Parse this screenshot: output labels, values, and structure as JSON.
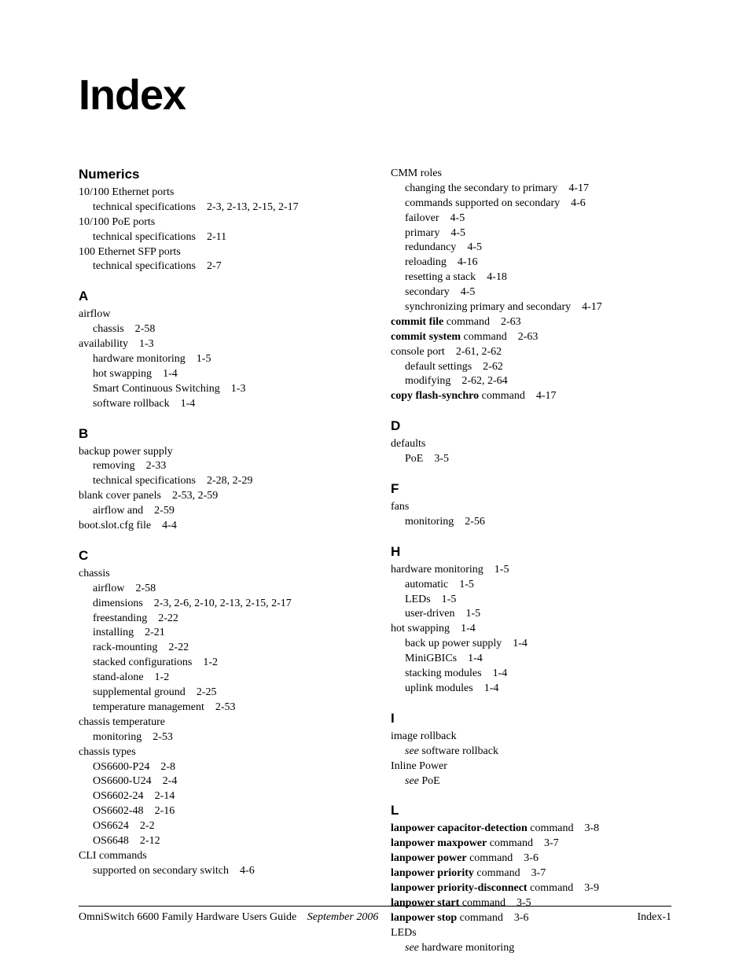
{
  "title": "Index",
  "footer": {
    "guide": "OmniSwitch 6600 Family Hardware Users Guide",
    "date": "September 2006",
    "page": "Index-1"
  },
  "left": {
    "numerics": {
      "head": "Numerics",
      "e1": "10/100 Ethernet ports",
      "e1a_label": "technical specifications",
      "e1a_pages": "2-3, 2-13, 2-15, 2-17",
      "e2": "10/100 PoE ports",
      "e2a_label": "technical specifications",
      "e2a_pages": "2-11",
      "e3": "100 Ethernet SFP ports",
      "e3a_label": "technical specifications",
      "e3a_pages": "2-7"
    },
    "A": {
      "head": "A",
      "e1": "airflow",
      "e1a_label": "chassis",
      "e1a_pages": "2-58",
      "e2_label": "availability",
      "e2_pages": "1-3",
      "e2a_label": "hardware monitoring",
      "e2a_pages": "1-5",
      "e2b_label": "hot swapping",
      "e2b_pages": "1-4",
      "e2c_label": "Smart Continuous Switching",
      "e2c_pages": "1-3",
      "e2d_label": "software rollback",
      "e2d_pages": "1-4"
    },
    "B": {
      "head": "B",
      "e1": "backup power supply",
      "e1a_label": "removing",
      "e1a_pages": "2-33",
      "e1b_label": "technical specifications",
      "e1b_pages": "2-28, 2-29",
      "e2_label": "blank cover panels",
      "e2_pages": "2-53, 2-59",
      "e2a_label": "airflow and",
      "e2a_pages": "2-59",
      "e3_label": "boot.slot.cfg file",
      "e3_pages": "4-4"
    },
    "C": {
      "head": "C",
      "e1": "chassis",
      "e1a_label": "airflow",
      "e1a_pages": "2-58",
      "e1b_label": "dimensions",
      "e1b_pages": "2-3, 2-6, 2-10, 2-13, 2-15, 2-17",
      "e1c_label": "freestanding",
      "e1c_pages": "2-22",
      "e1d_label": "installing",
      "e1d_pages": "2-21",
      "e1e_label": "rack-mounting",
      "e1e_pages": "2-22",
      "e1f_label": "stacked configurations",
      "e1f_pages": "1-2",
      "e1g_label": "stand-alone",
      "e1g_pages": "1-2",
      "e1h_label": "supplemental ground",
      "e1h_pages": "2-25",
      "e1i_label": "temperature management",
      "e1i_pages": "2-53",
      "e2": "chassis temperature",
      "e2a_label": "monitoring",
      "e2a_pages": "2-53",
      "e3": "chassis types",
      "e3a_label": "OS6600-P24",
      "e3a_pages": "2-8",
      "e3b_label": "OS6600-U24",
      "e3b_pages": "2-4",
      "e3c_label": "OS6602-24",
      "e3c_pages": "2-14",
      "e3d_label": "OS6602-48",
      "e3d_pages": "2-16",
      "e3e_label": "OS6624",
      "e3e_pages": "2-2",
      "e3f_label": "OS6648",
      "e3f_pages": "2-12",
      "e4": "CLI commands",
      "e4a_label": "supported on secondary switch",
      "e4a_pages": "4-6"
    }
  },
  "right": {
    "Ccont": {
      "e1": "CMM roles",
      "e1a_label": "changing the secondary to primary",
      "e1a_pages": "4-17",
      "e1b_label": "commands supported on secondary",
      "e1b_pages": "4-6",
      "e1c_label": "failover",
      "e1c_pages": "4-5",
      "e1d_label": "primary",
      "e1d_pages": "4-5",
      "e1e_label": "redundancy",
      "e1e_pages": "4-5",
      "e1f_label": "reloading",
      "e1f_pages": "4-16",
      "e1g_label": "resetting a stack",
      "e1g_pages": "4-18",
      "e1h_label": "secondary",
      "e1h_pages": "4-5",
      "e1i_label": "synchronizing primary and secondary",
      "e1i_pages": "4-17",
      "e2_b": "commit file",
      "e2_n": " command",
      "e2_pages": "2-63",
      "e3_b": "commit system",
      "e3_n": " command",
      "e3_pages": "2-63",
      "e4_label": "console port",
      "e4_pages": "2-61, 2-62",
      "e4a_label": "default settings",
      "e4a_pages": "2-62",
      "e4b_label": "modifying",
      "e4b_pages": "2-62, 2-64",
      "e5_b": "copy flash-synchro",
      "e5_n": " command",
      "e5_pages": "4-17"
    },
    "D": {
      "head": "D",
      "e1": "defaults",
      "e1a_label": "PoE",
      "e1a_pages": "3-5"
    },
    "F": {
      "head": "F",
      "e1": "fans",
      "e1a_label": "monitoring",
      "e1a_pages": "2-56"
    },
    "H": {
      "head": "H",
      "e1_label": "hardware monitoring",
      "e1_pages": "1-5",
      "e1a_label": "automatic",
      "e1a_pages": "1-5",
      "e1b_label": "LEDs",
      "e1b_pages": "1-5",
      "e1c_label": "user-driven",
      "e1c_pages": "1-5",
      "e2_label": "hot swapping",
      "e2_pages": "1-4",
      "e2a_label": "back up power supply",
      "e2a_pages": "1-4",
      "e2b_label": "MiniGBICs",
      "e2b_pages": "1-4",
      "e2c_label": "stacking modules",
      "e2c_pages": "1-4",
      "e2d_label": "uplink modules",
      "e2d_pages": "1-4"
    },
    "I": {
      "head": "I",
      "e1": "image rollback",
      "e1a_see": "see",
      "e1a_ref": " software rollback",
      "e2": "Inline Power",
      "e2a_see": "see",
      "e2a_ref": " PoE"
    },
    "L": {
      "head": "L",
      "e1_b": "lanpower capacitor-detection",
      "e1_n": " command",
      "e1_pages": "3-8",
      "e2_b": "lanpower maxpower",
      "e2_n": " command",
      "e2_pages": "3-7",
      "e3_b": "lanpower power",
      "e3_n": " command",
      "e3_pages": "3-6",
      "e4_b": "lanpower priority",
      "e4_n": " command",
      "e4_pages": "3-7",
      "e5_b": "lanpower priority-disconnect",
      "e5_n": " command",
      "e5_pages": "3-9",
      "e6_b": "lanpower start",
      "e6_n": " command",
      "e6_pages": "3-5",
      "e7_b": "lanpower stop",
      "e7_n": " command",
      "e7_pages": "3-6",
      "e8": "LEDs",
      "e8a_see": "see",
      "e8a_ref": " hardware monitoring"
    }
  }
}
